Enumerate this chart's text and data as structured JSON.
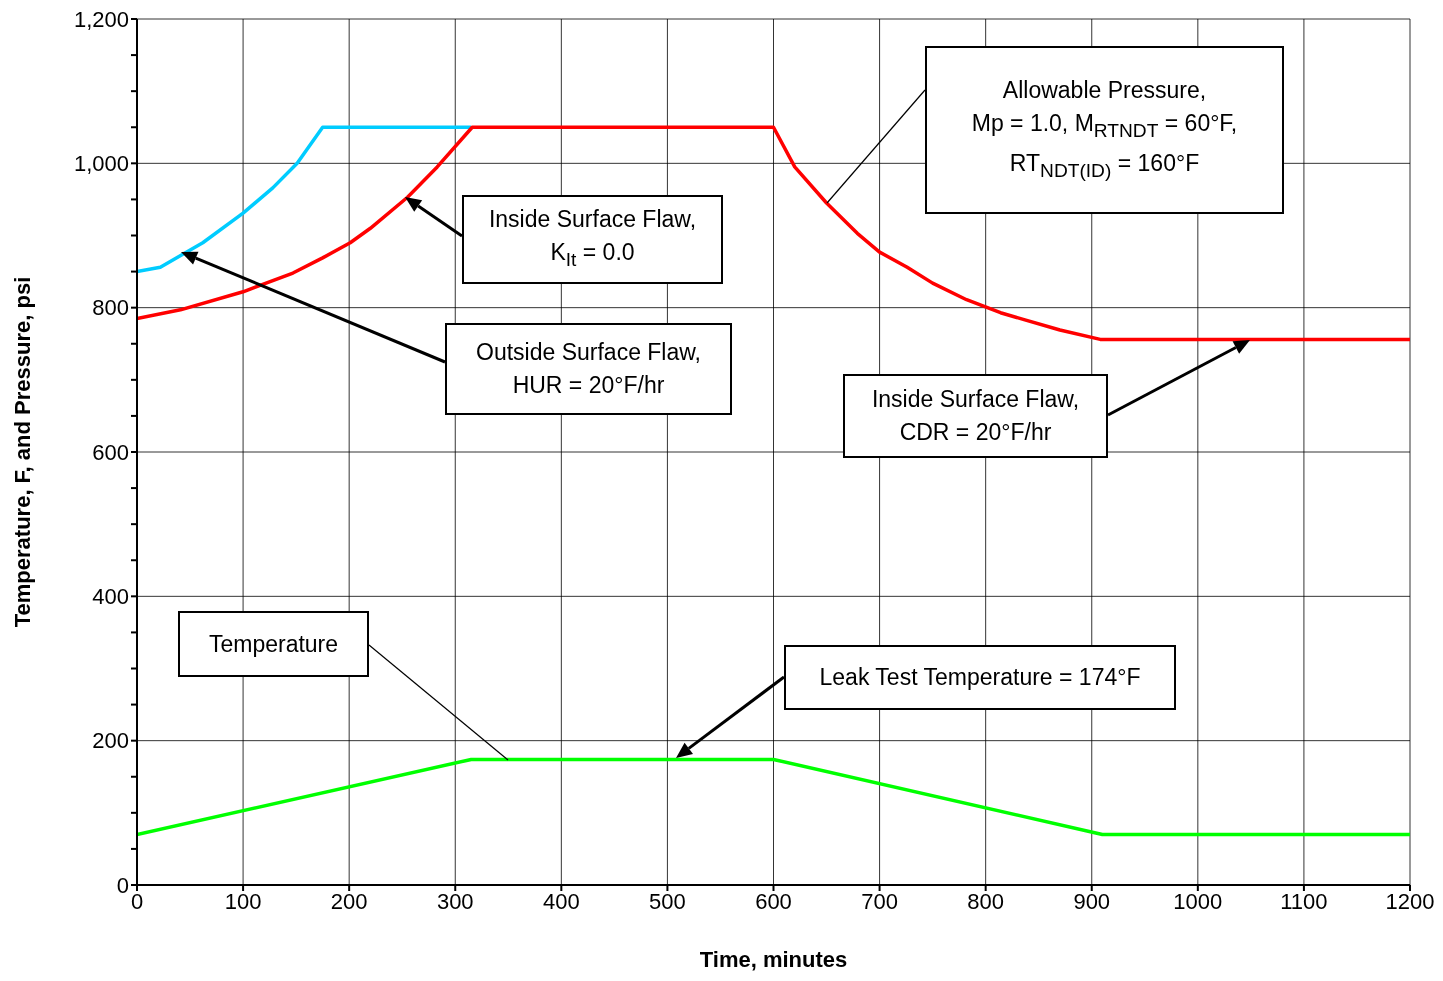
{
  "chart_data": {
    "type": "line",
    "xlabel": "Time, minutes",
    "ylabel": "Temperature, F, and Pressure, psi",
    "xlim": [
      0,
      1200
    ],
    "xticks": [
      0,
      100,
      200,
      300,
      400,
      500,
      600,
      700,
      800,
      900,
      1000,
      1100,
      1200
    ],
    "ylim": [
      0,
      1200
    ],
    "yticks": [
      0,
      {
        "value": 50,
        "label": null
      },
      200,
      {
        "value": 150,
        "label": null
      },
      {
        "value": 100,
        "label": null
      },
      {
        "value": 250,
        "label": null
      },
      {
        "value": 300,
        "label": null
      },
      {
        "value": 350,
        "label": null
      },
      400,
      {
        "value": 450,
        "label": null
      },
      {
        "value": 500,
        "label": null
      },
      {
        "value": 550,
        "label": null
      },
      600,
      {
        "value": 650,
        "label": null
      },
      {
        "value": 700,
        "label": null
      },
      {
        "value": 750,
        "label": null
      },
      800,
      {
        "value": 850,
        "label": null
      },
      {
        "value": 900,
        "label": null
      },
      {
        "value": 950,
        "label": null
      },
      {
        "value": 1000,
        "label": "1,000"
      },
      {
        "value": 1050,
        "label": null
      },
      {
        "value": 1100,
        "label": null
      },
      {
        "value": 1150,
        "label": null
      },
      {
        "value": 1200,
        "label": "1,200"
      }
    ],
    "grid": true,
    "marker": "none",
    "line_style": "solid",
    "series": [
      {
        "color": "#00ccff",
        "x": [
          0,
          22,
          62,
          100,
          128,
          151,
          175,
          315
        ],
        "values": [
          850,
          856,
          890,
          931,
          966,
          1000,
          1050,
          1050
        ]
      },
      {
        "color": "#ff0000",
        "x": [
          0,
          41,
          100,
          147,
          175,
          201,
          220,
          255,
          283,
          316,
          600,
          620,
          650,
          679,
          700,
          726,
          750,
          782,
          814,
          837,
          870,
          908,
          1200
        ],
        "values": [
          785,
          797,
          822,
          848,
          869,
          890,
          910,
          953,
          995,
          1050,
          1050,
          995,
          945,
          903,
          877,
          856,
          834,
          811,
          793,
          783,
          769,
          756,
          756
        ]
      },
      {
        "color": "#00ff00",
        "x": [
          0,
          315,
          600,
          910,
          1200
        ],
        "values": [
          70,
          174,
          174,
          70,
          70
        ]
      }
    ],
    "annotations": [
      "Allowable Pressure,\nMp = 1.0, M$_{RTNDT}$ = 60°F,\nRT$_{NDT(ID)}$ = 160°F",
      "Inside Surface Flaw,\nK$_{It}$ = 0.0",
      "Outside Surface Flaw,\nHUR = 20°F/hr",
      "Inside Surface Flaw,\nCDR = 20°F/hr",
      "Temperature",
      "Leak Test Temperature = 174°F"
    ]
  }
}
